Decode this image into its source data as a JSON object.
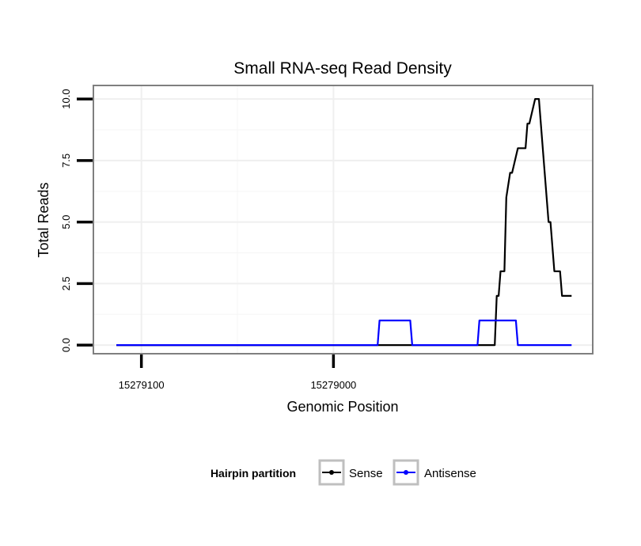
{
  "chart_data": {
    "type": "line",
    "title": "Small RNA-seq Read Density",
    "xlabel": "Genomic Position",
    "ylabel": "Total Reads",
    "x_reversed": true,
    "xlim": [
      15279125,
      15278865
    ],
    "ylim": [
      -0.35,
      10.55
    ],
    "x_ticks": [
      15279100,
      15279000
    ],
    "x_tick_labels": [
      "15279100",
      "15279000"
    ],
    "y_ticks": [
      0,
      2.5,
      5,
      7.5,
      10
    ],
    "y_tick_labels": [
      "0.0",
      "2.5",
      "5.0",
      "7.5",
      "10.0"
    ],
    "grid": true,
    "legend": {
      "title": "Hairpin partition",
      "position": "bottom",
      "entries": [
        "Sense",
        "Antisense"
      ]
    },
    "series": [
      {
        "name": "Sense",
        "color": "#000000",
        "x": [
          15279113,
          15278921,
          15278916,
          15278915,
          15278914,
          15278913,
          15278911,
          15278910,
          15278908,
          15278907,
          15278904,
          15278903,
          15278902,
          15278900,
          15278899,
          15278898,
          15278895,
          15278894,
          15278893,
          15278890,
          15278888,
          15278887,
          15278885,
          15278882,
          15278881,
          15278876
        ],
        "y": [
          0,
          0,
          0,
          2,
          2,
          3,
          3,
          6,
          7,
          7,
          8,
          8,
          8,
          8,
          9,
          9,
          10,
          10,
          10,
          7,
          5,
          5,
          3,
          3,
          2,
          2
        ]
      },
      {
        "name": "Antisense",
        "color": "#0000ff",
        "x": [
          15279113,
          15278977,
          15278976,
          15278960,
          15278959,
          15278925,
          15278924,
          15278905,
          15278904,
          15278876
        ],
        "y": [
          0,
          0,
          1,
          1,
          0,
          0,
          1,
          1,
          0,
          0
        ]
      }
    ]
  }
}
